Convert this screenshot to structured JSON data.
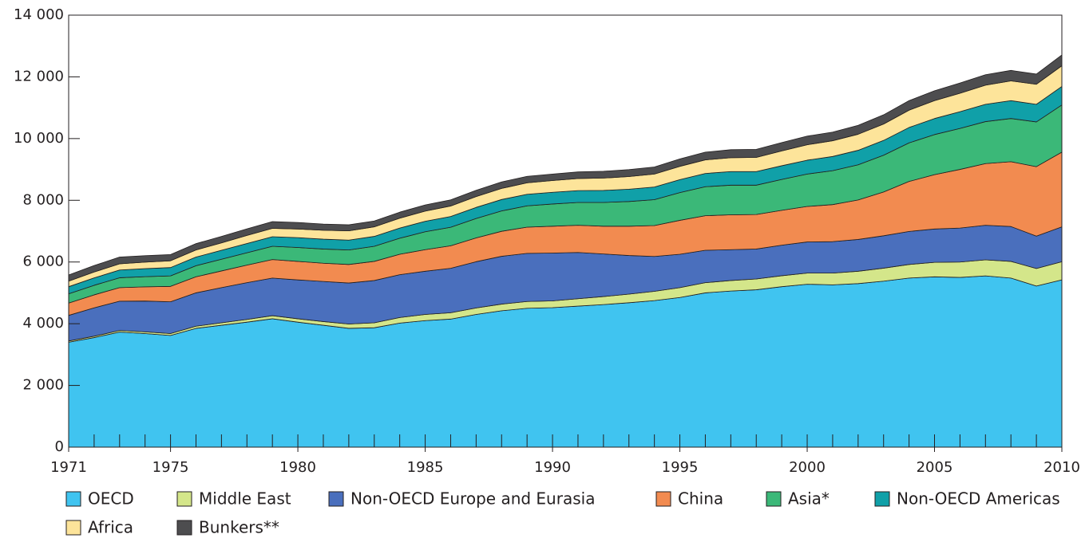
{
  "chart_data": {
    "type": "stacked_area",
    "x": [
      1971,
      1972,
      1973,
      1974,
      1975,
      1976,
      1977,
      1978,
      1979,
      1980,
      1981,
      1982,
      1983,
      1984,
      1985,
      1986,
      1987,
      1988,
      1989,
      1990,
      1991,
      1992,
      1993,
      1994,
      1995,
      1996,
      1997,
      1998,
      1999,
      2000,
      2001,
      2002,
      2003,
      2004,
      2005,
      2006,
      2007,
      2008,
      2009,
      2010
    ],
    "xlim": [
      1971,
      2010
    ],
    "xticks": [
      1971,
      1975,
      1980,
      1985,
      1990,
      1995,
      2000,
      2005,
      2010
    ],
    "ylim": [
      0,
      14000
    ],
    "yticks": [
      0,
      {
        "value": 2000,
        "label": "2 000"
      },
      {
        "value": 4000,
        "label": "4 000"
      },
      {
        "value": 6000,
        "label": "6 000"
      },
      {
        "value": 8000,
        "label": "8 000"
      },
      {
        "value": 10000,
        "label": "10 000"
      },
      {
        "value": 12000,
        "label": "12 000"
      },
      {
        "value": 14000,
        "label": "14 000"
      }
    ],
    "series": [
      {
        "name": "OECD",
        "color": "#40c4f0",
        "values": [
          3400,
          3550,
          3730,
          3680,
          3620,
          3850,
          3950,
          4050,
          4160,
          4050,
          3950,
          3850,
          3870,
          4020,
          4100,
          4150,
          4300,
          4420,
          4500,
          4520,
          4570,
          4620,
          4680,
          4750,
          4850,
          5000,
          5060,
          5100,
          5200,
          5280,
          5260,
          5300,
          5380,
          5480,
          5520,
          5500,
          5550,
          5480,
          5220,
          5420
        ]
      },
      {
        "name": "Middle East",
        "color": "#d4e68a",
        "values": [
          40,
          45,
          50,
          55,
          60,
          70,
          80,
          90,
          100,
          110,
          120,
          140,
          160,
          180,
          200,
          205,
          210,
          215,
          220,
          220,
          240,
          260,
          280,
          300,
          320,
          330,
          340,
          350,
          355,
          360,
          380,
          400,
          420,
          440,
          470,
          500,
          520,
          540,
          570,
          590
        ]
      },
      {
        "name": "Non-OECD Europe and Eurasia",
        "color": "#4a6fbd",
        "values": [
          830,
          920,
          950,
          1000,
          1030,
          1080,
          1140,
          1190,
          1220,
          1260,
          1300,
          1330,
          1370,
          1390,
          1400,
          1440,
          1500,
          1550,
          1560,
          1550,
          1500,
          1380,
          1250,
          1130,
          1080,
          1050,
          1000,
          970,
          990,
          1010,
          1020,
          1030,
          1050,
          1070,
          1080,
          1100,
          1120,
          1130,
          1050,
          1130
        ]
      },
      {
        "name": "China",
        "color": "#f28b50",
        "values": [
          400,
          420,
          440,
          460,
          500,
          520,
          540,
          570,
          600,
          600,
          590,
          600,
          620,
          660,
          700,
          730,
          770,
          810,
          850,
          870,
          880,
          900,
          950,
          1000,
          1100,
          1120,
          1130,
          1120,
          1130,
          1150,
          1200,
          1280,
          1420,
          1620,
          1760,
          1900,
          2000,
          2100,
          2250,
          2420
        ]
      },
      {
        "name": "Asia*",
        "color": "#3bb878",
        "values": [
          300,
          310,
          320,
          330,
          340,
          360,
          380,
          400,
          430,
          450,
          460,
          470,
          490,
          520,
          580,
          600,
          630,
          660,
          690,
          720,
          740,
          770,
          800,
          840,
          900,
          940,
          960,
          950,
          1000,
          1050,
          1100,
          1140,
          1190,
          1250,
          1300,
          1330,
          1360,
          1400,
          1450,
          1530
        ]
      },
      {
        "name": "Non-OECD Americas",
        "color": "#10a0a8",
        "values": [
          230,
          240,
          250,
          260,
          270,
          280,
          290,
          300,
          310,
          320,
          320,
          320,
          320,
          330,
          340,
          350,
          360,
          370,
          375,
          380,
          385,
          390,
          400,
          410,
          420,
          430,
          440,
          440,
          445,
          450,
          460,
          470,
          480,
          500,
          520,
          540,
          560,
          580,
          570,
          600
        ]
      },
      {
        "name": "Africa",
        "color": "#fde49a",
        "values": [
          180,
          190,
          200,
          210,
          220,
          230,
          240,
          260,
          270,
          280,
          290,
          300,
          310,
          320,
          330,
          340,
          350,
          360,
          370,
          380,
          390,
          400,
          410,
          420,
          430,
          440,
          450,
          460,
          480,
          500,
          510,
          520,
          530,
          560,
          580,
          600,
          620,
          640,
          650,
          670
        ]
      },
      {
        "name": "Bunkers**",
        "color": "#4d4d4f",
        "values": [
          200,
          210,
          220,
          210,
          200,
          205,
          210,
          215,
          220,
          210,
          200,
          195,
          190,
          195,
          200,
          200,
          205,
          210,
          210,
          210,
          215,
          220,
          225,
          230,
          240,
          250,
          260,
          260,
          270,
          280,
          280,
          290,
          300,
          310,
          320,
          330,
          340,
          340,
          330,
          350
        ]
      }
    ]
  }
}
